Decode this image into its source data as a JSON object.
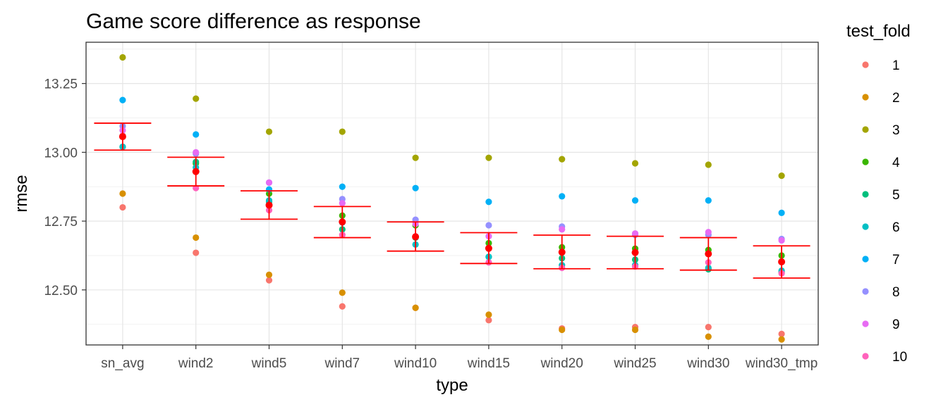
{
  "chart_data": {
    "type": "scatter",
    "title": "Game score difference as response",
    "xlabel": "type",
    "ylabel": "rmse",
    "ylim": [
      12.3,
      13.4
    ],
    "yticks": [
      12.5,
      12.75,
      13.0,
      13.25
    ],
    "ytick_labels": [
      "12.50",
      "12.75",
      "13.00",
      "13.25"
    ],
    "grid": true,
    "legend_position": "right",
    "legend": {
      "title": "test_fold",
      "entries": [
        {
          "label": "1",
          "color": "#F8766D"
        },
        {
          "label": "2",
          "color": "#D89000"
        },
        {
          "label": "3",
          "color": "#A3A500"
        },
        {
          "label": "4",
          "color": "#39B600"
        },
        {
          "label": "5",
          "color": "#00BF7D"
        },
        {
          "label": "6",
          "color": "#00BFC4"
        },
        {
          "label": "7",
          "color": "#00B0F6"
        },
        {
          "label": "8",
          "color": "#9590FF"
        },
        {
          "label": "9",
          "color": "#E76BF3"
        },
        {
          "label": "10",
          "color": "#FF62BC"
        }
      ]
    },
    "categories": [
      "sn_avg",
      "wind2",
      "wind5",
      "wind7",
      "wind10",
      "wind15",
      "wind20",
      "wind25",
      "wind30",
      "wind30_tmp"
    ],
    "series": [
      {
        "name": "1",
        "values": [
          12.8,
          12.635,
          12.535,
          12.44,
          12.435,
          12.39,
          12.36,
          12.365,
          12.365,
          12.34
        ]
      },
      {
        "name": "2",
        "values": [
          12.85,
          12.69,
          12.555,
          12.49,
          12.435,
          12.41,
          12.355,
          12.355,
          12.33,
          12.32
        ]
      },
      {
        "name": "3",
        "values": [
          13.345,
          13.195,
          13.075,
          13.075,
          12.98,
          12.98,
          12.975,
          12.96,
          12.955,
          12.915
        ]
      },
      {
        "name": "4",
        "values": [
          13.06,
          12.96,
          12.85,
          12.77,
          12.735,
          12.67,
          12.655,
          12.65,
          12.645,
          12.625
        ]
      },
      {
        "name": "5",
        "values": [
          13.02,
          12.965,
          12.82,
          12.72,
          12.69,
          12.62,
          12.615,
          12.61,
          12.575,
          12.565
        ]
      },
      {
        "name": "6",
        "values": [
          13.02,
          12.945,
          12.825,
          12.745,
          12.665,
          12.62,
          12.59,
          12.59,
          12.58,
          12.57
        ]
      },
      {
        "name": "7",
        "values": [
          13.19,
          13.065,
          12.865,
          12.875,
          12.87,
          12.82,
          12.84,
          12.825,
          12.825,
          12.78
        ]
      },
      {
        "name": "8",
        "values": [
          13.095,
          12.995,
          12.89,
          12.83,
          12.755,
          12.735,
          12.73,
          12.7,
          12.7,
          12.685
        ]
      },
      {
        "name": "9",
        "values": [
          13.08,
          13.0,
          12.89,
          12.815,
          12.74,
          12.695,
          12.72,
          12.705,
          12.71,
          12.68
        ]
      },
      {
        "name": "10",
        "values": [
          13.06,
          12.87,
          12.79,
          12.7,
          12.695,
          12.6,
          12.58,
          12.585,
          12.6,
          12.56
        ]
      }
    ],
    "summary": {
      "name": "mean ± error bar",
      "color": "#FF0000",
      "mean": [
        13.057,
        12.93,
        12.808,
        12.747,
        12.693,
        12.651,
        12.637,
        12.636,
        12.631,
        12.602
      ],
      "lower": [
        13.008,
        12.878,
        12.757,
        12.69,
        12.641,
        12.596,
        12.577,
        12.577,
        12.572,
        12.543
      ],
      "upper": [
        13.106,
        12.982,
        12.86,
        12.803,
        12.747,
        12.708,
        12.699,
        12.695,
        12.69,
        12.66
      ]
    }
  }
}
